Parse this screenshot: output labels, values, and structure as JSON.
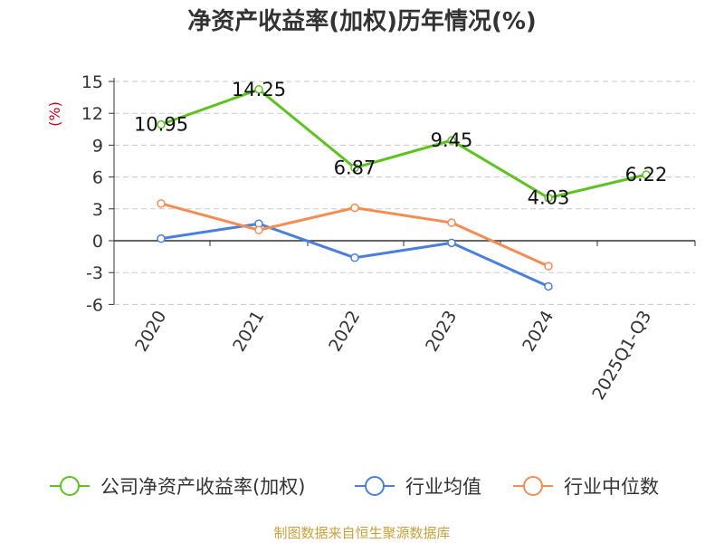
{
  "chart_data": {
    "type": "line",
    "title": "净资产收益率(加权)历年情况(%)",
    "ylabel": "(%)",
    "xlabel": "",
    "categories": [
      "2020",
      "2021",
      "2022",
      "2023",
      "2024",
      "2025Q1-Q3"
    ],
    "ylim": [
      -6,
      15
    ],
    "yticks": [
      15,
      12,
      9,
      6,
      3,
      0,
      -3,
      -6
    ],
    "grid": true,
    "legend_position": "bottom",
    "series": [
      {
        "name": "公司净资产收益率(加权)",
        "color": "#5cc31f",
        "values": [
          10.95,
          14.25,
          6.87,
          9.45,
          4.03,
          6.22
        ],
        "labels": [
          "10.95",
          "14.25",
          "6.87",
          "9.45",
          "4.03",
          "6.22"
        ]
      },
      {
        "name": "行业均值",
        "color": "#4a7fdc",
        "values": [
          0.2,
          1.6,
          -1.6,
          -0.2,
          -4.3,
          null
        ]
      },
      {
        "name": "行业中位数",
        "color": "#f58d53",
        "values": [
          3.5,
          1.0,
          3.1,
          1.7,
          -2.4,
          null
        ]
      }
    ]
  },
  "source_text": "制图数据来自恒生聚源数据库"
}
